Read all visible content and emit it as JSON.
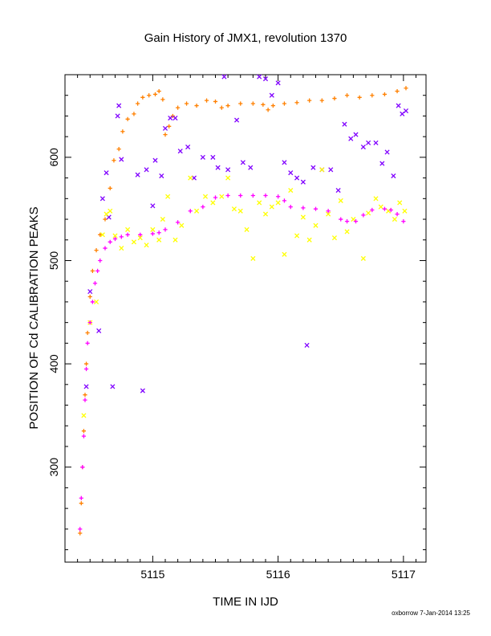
{
  "chart_data": {
    "type": "scatter",
    "title": "Gain History of JMX1, revolution 1370",
    "xlabel": "TIME IN IJD",
    "ylabel": "POSITION OF Cd CALIBRATION PEAKS",
    "footer": "oxborrow  7-Jan-2014 13:25",
    "xlim": [
      5114.3,
      5117.18
    ],
    "ylim": [
      208,
      680
    ],
    "xticks": [
      5115,
      5116,
      5117
    ],
    "yticks": [
      300,
      400,
      500,
      600
    ],
    "series": [
      {
        "color": "#ff8000",
        "marker": "plus",
        "points": [
          [
            5114.42,
            236
          ],
          [
            5114.43,
            265
          ],
          [
            5114.44,
            300
          ],
          [
            5114.45,
            335
          ],
          [
            5114.46,
            370
          ],
          [
            5114.47,
            400
          ],
          [
            5114.48,
            430
          ],
          [
            5114.5,
            465
          ],
          [
            5114.52,
            490
          ],
          [
            5114.55,
            510
          ],
          [
            5114.58,
            525
          ],
          [
            5114.62,
            540
          ],
          [
            5114.66,
            570
          ],
          [
            5114.69,
            597
          ],
          [
            5114.73,
            608
          ],
          [
            5114.76,
            625
          ],
          [
            5114.8,
            637
          ],
          [
            5114.85,
            642
          ],
          [
            5114.88,
            652
          ],
          [
            5114.92,
            658
          ],
          [
            5114.97,
            660
          ],
          [
            5115.02,
            661
          ],
          [
            5115.05,
            664
          ],
          [
            5115.08,
            656
          ],
          [
            5115.1,
            622
          ],
          [
            5115.13,
            630
          ],
          [
            5115.16,
            640
          ],
          [
            5115.2,
            648
          ],
          [
            5115.27,
            652
          ],
          [
            5115.35,
            650
          ],
          [
            5115.43,
            655
          ],
          [
            5115.5,
            654
          ],
          [
            5115.55,
            648
          ],
          [
            5115.6,
            650
          ],
          [
            5115.7,
            652
          ],
          [
            5115.8,
            652
          ],
          [
            5115.88,
            651
          ],
          [
            5115.92,
            646
          ],
          [
            5115.96,
            650
          ],
          [
            5116.05,
            652
          ],
          [
            5116.15,
            653
          ],
          [
            5116.25,
            655
          ],
          [
            5116.35,
            655
          ],
          [
            5116.45,
            657
          ],
          [
            5116.55,
            660
          ],
          [
            5116.65,
            658
          ],
          [
            5116.75,
            660
          ],
          [
            5116.85,
            661
          ],
          [
            5116.95,
            664
          ],
          [
            5117.02,
            667
          ]
        ]
      },
      {
        "color": "#8000ff",
        "marker": "x",
        "points": [
          [
            5114.47,
            378
          ],
          [
            5114.5,
            470
          ],
          [
            5114.57,
            432
          ],
          [
            5114.6,
            560
          ],
          [
            5114.63,
            585
          ],
          [
            5114.65,
            542
          ],
          [
            5114.68,
            378
          ],
          [
            5114.72,
            640
          ],
          [
            5114.73,
            650
          ],
          [
            5114.75,
            598
          ],
          [
            5114.88,
            583
          ],
          [
            5114.92,
            374
          ],
          [
            5114.95,
            588
          ],
          [
            5115.0,
            553
          ],
          [
            5115.02,
            597
          ],
          [
            5115.07,
            582
          ],
          [
            5115.1,
            628
          ],
          [
            5115.14,
            638
          ],
          [
            5115.18,
            638
          ],
          [
            5115.22,
            606
          ],
          [
            5115.28,
            610
          ],
          [
            5115.33,
            580
          ],
          [
            5115.4,
            600
          ],
          [
            5115.48,
            600
          ],
          [
            5115.52,
            590
          ],
          [
            5115.57,
            678
          ],
          [
            5115.6,
            588
          ],
          [
            5115.67,
            636
          ],
          [
            5115.72,
            595
          ],
          [
            5115.78,
            590
          ],
          [
            5115.85,
            678
          ],
          [
            5115.9,
            676
          ],
          [
            5115.95,
            660
          ],
          [
            5116.0,
            672
          ],
          [
            5116.05,
            595
          ],
          [
            5116.1,
            585
          ],
          [
            5116.15,
            580
          ],
          [
            5116.2,
            576
          ],
          [
            5116.23,
            418
          ],
          [
            5116.28,
            590
          ],
          [
            5116.35,
            588
          ],
          [
            5116.42,
            588
          ],
          [
            5116.48,
            568
          ],
          [
            5116.53,
            632
          ],
          [
            5116.58,
            618
          ],
          [
            5116.62,
            622
          ],
          [
            5116.68,
            610
          ],
          [
            5116.72,
            614
          ],
          [
            5116.78,
            614
          ],
          [
            5116.83,
            594
          ],
          [
            5116.87,
            605
          ],
          [
            5116.92,
            582
          ],
          [
            5116.96,
            650
          ],
          [
            5116.99,
            642
          ],
          [
            5117.02,
            645
          ]
        ]
      },
      {
        "color": "#ffff00",
        "marker": "x",
        "points": [
          [
            5114.45,
            350
          ],
          [
            5114.5,
            440
          ],
          [
            5114.55,
            460
          ],
          [
            5114.6,
            525
          ],
          [
            5114.63,
            545
          ],
          [
            5114.66,
            548
          ],
          [
            5114.7,
            524
          ],
          [
            5114.75,
            512
          ],
          [
            5114.8,
            530
          ],
          [
            5114.85,
            518
          ],
          [
            5114.9,
            522
          ],
          [
            5114.95,
            515
          ],
          [
            5115.0,
            530
          ],
          [
            5115.05,
            520
          ],
          [
            5115.08,
            540
          ],
          [
            5115.12,
            562
          ],
          [
            5115.18,
            520
          ],
          [
            5115.23,
            534
          ],
          [
            5115.3,
            580
          ],
          [
            5115.35,
            548
          ],
          [
            5115.42,
            562
          ],
          [
            5115.48,
            556
          ],
          [
            5115.55,
            562
          ],
          [
            5115.6,
            580
          ],
          [
            5115.65,
            550
          ],
          [
            5115.7,
            548
          ],
          [
            5115.75,
            530
          ],
          [
            5115.8,
            502
          ],
          [
            5115.85,
            556
          ],
          [
            5115.9,
            545
          ],
          [
            5115.95,
            552
          ],
          [
            5116.0,
            556
          ],
          [
            5116.05,
            506
          ],
          [
            5116.1,
            568
          ],
          [
            5116.15,
            524
          ],
          [
            5116.2,
            542
          ],
          [
            5116.25,
            520
          ],
          [
            5116.3,
            534
          ],
          [
            5116.35,
            588
          ],
          [
            5116.4,
            545
          ],
          [
            5116.45,
            522
          ],
          [
            5116.5,
            558
          ],
          [
            5116.55,
            528
          ],
          [
            5116.6,
            540
          ],
          [
            5116.68,
            502
          ],
          [
            5116.72,
            546
          ],
          [
            5116.78,
            560
          ],
          [
            5116.82,
            552
          ],
          [
            5116.88,
            548
          ],
          [
            5116.93,
            540
          ],
          [
            5116.97,
            556
          ],
          [
            5117.01,
            548
          ]
        ]
      },
      {
        "color": "#ff00ff",
        "marker": "plus",
        "points": [
          [
            5114.42,
            240
          ],
          [
            5114.43,
            270
          ],
          [
            5114.44,
            300
          ],
          [
            5114.45,
            330
          ],
          [
            5114.46,
            365
          ],
          [
            5114.47,
            395
          ],
          [
            5114.48,
            420
          ],
          [
            5114.5,
            440
          ],
          [
            5114.52,
            460
          ],
          [
            5114.54,
            478
          ],
          [
            5114.56,
            490
          ],
          [
            5114.58,
            500
          ],
          [
            5114.62,
            512
          ],
          [
            5114.66,
            518
          ],
          [
            5114.7,
            521
          ],
          [
            5114.75,
            523
          ],
          [
            5114.8,
            525
          ],
          [
            5114.9,
            525
          ],
          [
            5115.0,
            526
          ],
          [
            5115.05,
            527
          ],
          [
            5115.1,
            530
          ],
          [
            5115.2,
            537
          ],
          [
            5115.3,
            548
          ],
          [
            5115.4,
            552
          ],
          [
            5115.5,
            561
          ],
          [
            5115.6,
            563
          ],
          [
            5115.7,
            563
          ],
          [
            5115.8,
            563
          ],
          [
            5115.9,
            563
          ],
          [
            5116.0,
            562
          ],
          [
            5116.05,
            558
          ],
          [
            5116.1,
            552
          ],
          [
            5116.2,
            551
          ],
          [
            5116.3,
            550
          ],
          [
            5116.4,
            548
          ],
          [
            5116.5,
            540
          ],
          [
            5116.55,
            538
          ],
          [
            5116.62,
            538
          ],
          [
            5116.68,
            544
          ],
          [
            5116.75,
            549
          ],
          [
            5116.85,
            550
          ],
          [
            5116.9,
            549
          ],
          [
            5116.95,
            545
          ],
          [
            5117.0,
            538
          ]
        ]
      }
    ]
  }
}
